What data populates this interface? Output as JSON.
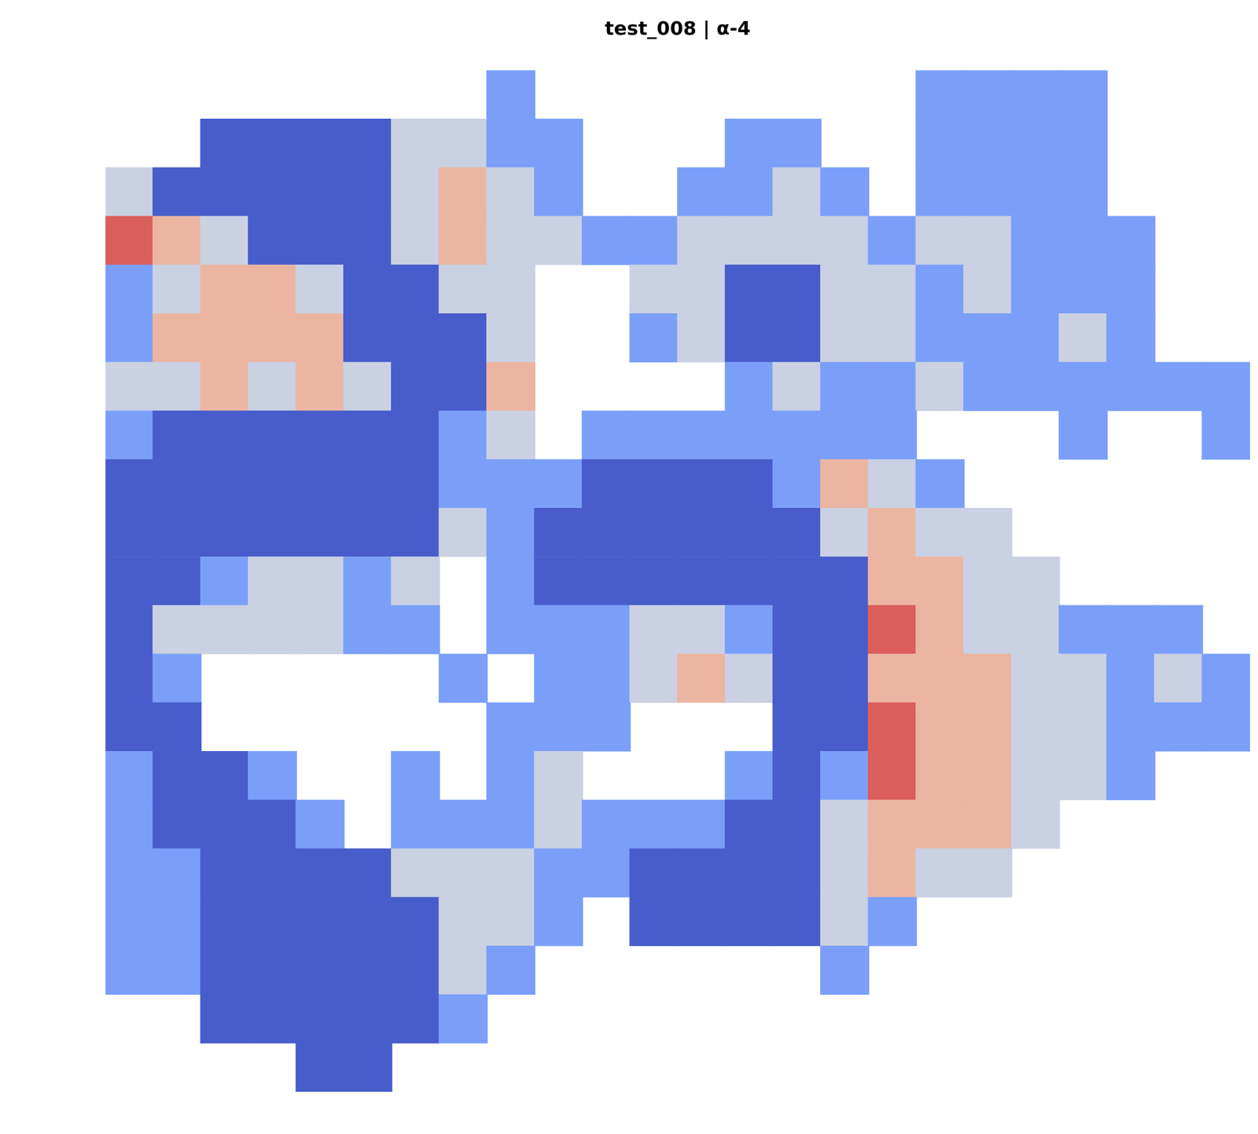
{
  "chart_data": {
    "type": "heatmap",
    "title": "test_008 | α-4",
    "tick_labels": false,
    "grid": false,
    "color_range": [
      0,
      1
    ],
    "cells": [
      [
        null,
        null,
        null,
        null,
        null,
        null,
        null,
        null,
        0.25,
        null,
        null,
        null,
        null,
        null,
        null,
        null,
        null,
        0.25,
        0.25,
        0.25,
        0.25,
        null,
        null,
        null
      ],
      [
        null,
        null,
        0.05,
        0.05,
        0.05,
        0.05,
        0.45,
        0.45,
        0.25,
        0.25,
        null,
        null,
        null,
        0.25,
        0.25,
        null,
        null,
        0.25,
        0.25,
        0.25,
        0.25,
        null,
        null,
        null
      ],
      [
        0.45,
        0.05,
        0.05,
        0.05,
        0.05,
        0.05,
        0.45,
        0.65,
        0.45,
        0.25,
        null,
        null,
        0.25,
        0.25,
        0.45,
        0.25,
        null,
        0.25,
        0.25,
        0.25,
        0.25,
        null,
        null,
        null
      ],
      [
        0.85,
        0.65,
        0.45,
        0.05,
        0.05,
        0.05,
        0.45,
        0.65,
        0.45,
        0.45,
        0.25,
        0.25,
        0.45,
        0.45,
        0.45,
        0.45,
        0.25,
        0.45,
        0.45,
        0.25,
        0.25,
        0.25,
        null,
        null
      ],
      [
        0.25,
        0.45,
        0.65,
        0.65,
        0.45,
        0.05,
        0.05,
        0.45,
        0.45,
        null,
        null,
        0.45,
        0.45,
        0.05,
        0.05,
        0.45,
        0.45,
        0.25,
        0.45,
        0.25,
        0.25,
        0.25,
        null,
        null
      ],
      [
        0.25,
        0.65,
        0.65,
        0.65,
        0.65,
        0.05,
        0.05,
        0.05,
        0.45,
        null,
        null,
        0.25,
        0.45,
        0.05,
        0.05,
        0.45,
        0.45,
        0.25,
        0.25,
        0.25,
        0.45,
        0.25,
        null,
        null
      ],
      [
        0.45,
        0.45,
        0.65,
        0.45,
        0.65,
        0.45,
        0.05,
        0.05,
        0.65,
        null,
        null,
        null,
        null,
        0.25,
        0.45,
        0.25,
        0.25,
        0.45,
        0.25,
        0.25,
        0.25,
        0.25,
        0.25,
        0.25
      ],
      [
        0.25,
        0.05,
        0.05,
        0.05,
        0.05,
        0.05,
        0.05,
        0.25,
        0.45,
        null,
        0.25,
        0.25,
        0.25,
        0.25,
        0.25,
        0.25,
        0.25,
        null,
        null,
        null,
        0.25,
        null,
        null,
        0.25
      ],
      [
        0.05,
        0.05,
        0.05,
        0.05,
        0.05,
        0.05,
        0.05,
        0.25,
        0.25,
        0.25,
        0.05,
        0.05,
        0.05,
        0.05,
        0.25,
        0.65,
        0.45,
        0.25,
        null,
        null,
        null,
        null,
        null,
        null
      ],
      [
        0.05,
        0.05,
        0.05,
        0.05,
        0.05,
        0.05,
        0.05,
        0.45,
        0.25,
        0.05,
        0.05,
        0.05,
        0.05,
        0.05,
        0.05,
        0.45,
        0.65,
        0.45,
        0.45,
        null,
        null,
        null,
        null,
        null
      ],
      [
        0.05,
        0.05,
        0.25,
        0.45,
        0.45,
        0.25,
        0.45,
        null,
        0.25,
        0.05,
        0.05,
        0.05,
        0.05,
        0.05,
        0.05,
        0.05,
        0.65,
        0.65,
        0.45,
        0.45,
        null,
        null,
        null,
        null
      ],
      [
        0.05,
        0.45,
        0.45,
        0.45,
        0.45,
        0.25,
        0.25,
        null,
        0.25,
        0.25,
        0.25,
        0.45,
        0.45,
        0.25,
        0.05,
        0.05,
        0.85,
        0.65,
        0.45,
        0.45,
        0.25,
        0.25,
        0.25,
        null
      ],
      [
        0.05,
        0.25,
        null,
        null,
        null,
        null,
        null,
        0.25,
        null,
        0.25,
        0.25,
        0.45,
        0.65,
        0.45,
        0.05,
        0.05,
        0.65,
        0.65,
        0.65,
        0.45,
        0.45,
        0.25,
        0.45,
        0.25
      ],
      [
        0.05,
        0.05,
        null,
        null,
        null,
        null,
        null,
        null,
        0.25,
        0.25,
        0.25,
        null,
        null,
        null,
        0.05,
        0.05,
        0.85,
        0.65,
        0.65,
        0.45,
        0.45,
        0.25,
        0.25,
        0.25
      ],
      [
        0.25,
        0.05,
        0.05,
        0.25,
        null,
        null,
        0.25,
        null,
        0.25,
        0.45,
        null,
        null,
        null,
        0.25,
        0.05,
        0.25,
        0.85,
        0.65,
        0.65,
        0.45,
        0.45,
        0.25,
        null,
        null
      ],
      [
        0.25,
        0.05,
        0.05,
        0.05,
        0.25,
        null,
        0.25,
        0.25,
        0.25,
        0.45,
        0.25,
        0.25,
        0.25,
        0.05,
        0.05,
        0.45,
        0.65,
        0.65,
        0.65,
        0.45,
        null,
        null,
        null,
        null
      ],
      [
        0.25,
        0.25,
        0.05,
        0.05,
        0.05,
        0.05,
        0.45,
        0.45,
        0.45,
        0.25,
        0.25,
        0.05,
        0.05,
        0.05,
        0.05,
        0.45,
        0.65,
        0.45,
        0.45,
        null,
        null,
        null,
        null,
        null
      ],
      [
        0.25,
        0.25,
        0.05,
        0.05,
        0.05,
        0.05,
        0.05,
        0.45,
        0.45,
        0.25,
        null,
        0.05,
        0.05,
        0.05,
        0.05,
        0.45,
        0.25,
        null,
        null,
        null,
        null,
        null,
        null,
        null
      ],
      [
        0.25,
        0.25,
        0.05,
        0.05,
        0.05,
        0.05,
        0.05,
        0.45,
        0.25,
        null,
        null,
        null,
        null,
        null,
        null,
        0.25,
        null,
        null,
        null,
        null,
        null,
        null,
        null,
        null
      ],
      [
        null,
        null,
        0.05,
        0.05,
        0.05,
        0.05,
        0.05,
        0.25,
        null,
        null,
        null,
        null,
        null,
        null,
        null,
        null,
        null,
        null,
        null,
        null,
        null,
        null,
        null,
        null
      ],
      [
        null,
        null,
        null,
        null,
        0.05,
        0.05,
        null,
        null,
        null,
        null,
        null,
        null,
        null,
        null,
        null,
        null,
        null,
        null,
        null,
        null,
        null,
        null,
        null,
        null
      ]
    ]
  }
}
